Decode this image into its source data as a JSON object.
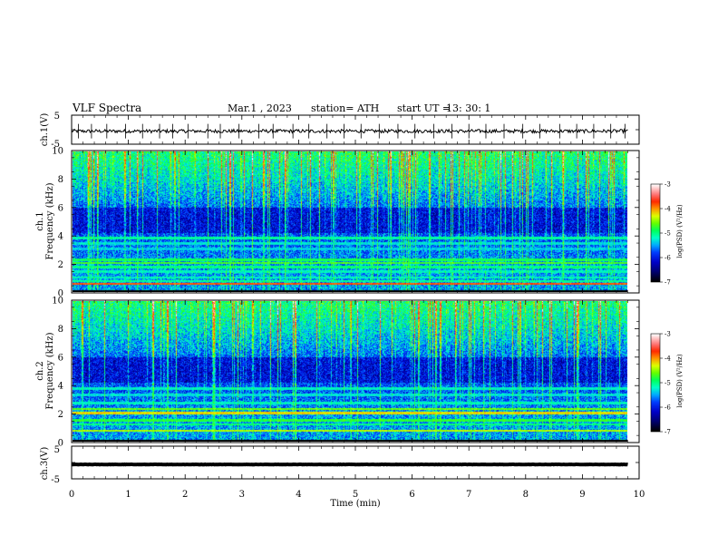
{
  "header": {
    "title": "VLF  Spectra",
    "date": "Mar.1  , 2023",
    "station": "station= ATH",
    "start_label": "start  UT  =",
    "start_time": "13: 30: 1"
  },
  "colors": {
    "background": "#ffffff",
    "axes": "#000000",
    "trace": "#000000",
    "colormap": [
      "#000000",
      "#0000c8",
      "#0050ff",
      "#00c8ff",
      "#00ffa0",
      "#00ff00",
      "#c8ff00",
      "#ff8000",
      "#ff0000",
      "#ffffff"
    ]
  },
  "chart_data": [
    {
      "type": "line",
      "panel": "ch1-waveform",
      "ylabel": "ch.1(V)",
      "ylim": [
        -5,
        5
      ],
      "yticks": [
        "5",
        "-5"
      ],
      "x_range": [
        0,
        9.8
      ],
      "baseline": -0.5,
      "noise_amplitude": 0.6,
      "spikes_min": [
        0.12,
        0.35,
        0.62,
        0.95,
        1.25,
        1.55,
        1.78,
        2.05,
        2.4,
        2.62,
        2.95,
        3.3,
        3.55,
        3.9,
        4.18,
        4.5,
        4.8,
        5.1,
        5.42,
        5.75,
        6.05,
        6.38,
        6.7,
        7.0,
        7.3,
        7.62,
        7.95,
        8.25,
        8.6,
        8.9,
        9.2,
        9.5,
        9.75
      ]
    },
    {
      "type": "heatmap",
      "panel": "ch1-spectrogram",
      "ylabel": "Frequency  (kHz)",
      "channel_label": "ch.1",
      "ylim": [
        0,
        10
      ],
      "yticks": [
        "0",
        "2",
        "4",
        "6",
        "8",
        "10"
      ],
      "x_range": [
        0,
        9.8
      ],
      "colorbar_label": "log(PSD) (V²/Hz)",
      "colorbar_range": [
        -7,
        -3
      ],
      "colorbar_ticks": [
        "-3",
        "-4",
        "-5",
        "-6",
        "-7"
      ],
      "lines_khz": [
        {
          "f": 0.2,
          "level": -6.6
        },
        {
          "f": 0.55,
          "level": -3.8
        },
        {
          "f": 0.75,
          "level": -5.1
        },
        {
          "f": 1.0,
          "level": -5.2
        },
        {
          "f": 1.45,
          "level": -5.2
        },
        {
          "f": 1.75,
          "level": -5.0
        },
        {
          "f": 2.05,
          "level": -4.7
        },
        {
          "f": 2.25,
          "level": -4.9
        },
        {
          "f": 3.05,
          "level": -5.4
        },
        {
          "f": 3.45,
          "level": -5.3
        },
        {
          "f": 3.85,
          "level": -5.1
        }
      ]
    },
    {
      "type": "heatmap",
      "panel": "ch2-spectrogram",
      "ylabel": "Frequency  (kHz)",
      "channel_label": "ch.2",
      "ylim": [
        0,
        10
      ],
      "yticks": [
        "0",
        "2",
        "4",
        "6",
        "8",
        "10"
      ],
      "x_range": [
        0,
        9.8
      ],
      "colorbar_label": "log(PSD) (V²/Hz)",
      "colorbar_range": [
        -7,
        -3
      ],
      "colorbar_ticks": [
        "-3",
        "-4",
        "-5",
        "-6",
        "-7"
      ],
      "lines_khz": [
        {
          "f": 0.2,
          "level": -6.6
        },
        {
          "f": 0.75,
          "level": -4.4
        },
        {
          "f": 1.2,
          "level": -5.0
        },
        {
          "f": 1.5,
          "level": -4.8
        },
        {
          "f": 2.0,
          "level": -4.2
        },
        {
          "f": 2.3,
          "level": -4.6
        },
        {
          "f": 2.75,
          "level": -5.2
        },
        {
          "f": 3.3,
          "level": -5.3
        },
        {
          "f": 3.75,
          "level": -5.2
        }
      ]
    },
    {
      "type": "line",
      "panel": "ch3-waveform",
      "ylabel": "ch.3(V)",
      "ylim": [
        -5,
        5
      ],
      "yticks": [
        "5",
        "-5"
      ],
      "x_range": [
        0,
        9.8
      ],
      "baseline": -0.6,
      "noise_amplitude": 0.05,
      "spikes_min": []
    }
  ],
  "x_axis": {
    "label": "Time  (min)",
    "xlim": [
      0,
      10
    ],
    "ticks": [
      "0",
      "1",
      "2",
      "3",
      "4",
      "5",
      "6",
      "7",
      "8",
      "9",
      "10"
    ]
  }
}
